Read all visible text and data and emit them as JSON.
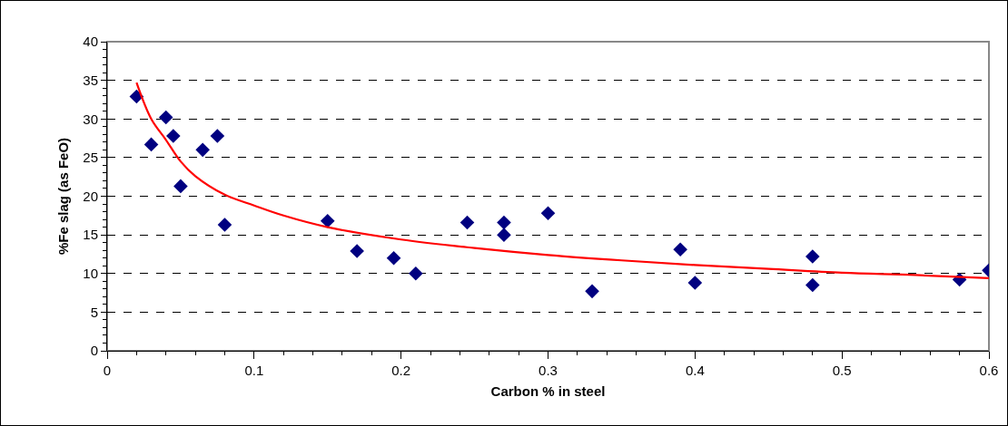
{
  "chart_data": {
    "type": "scatter",
    "xlabel": "Carbon % in steel",
    "ylabel": "%Fe slag (as FeO)",
    "xlim": [
      0,
      0.6
    ],
    "xticks": [
      0,
      0.1,
      0.2,
      0.3,
      0.4,
      0.5,
      0.6
    ],
    "ylim": [
      0,
      40
    ],
    "yticks": [
      0,
      5,
      10,
      15,
      20,
      25,
      30,
      35,
      40
    ],
    "grid": "y",
    "legend": false,
    "series": [
      {
        "marker": "diamond",
        "color": "#000080",
        "x": [
          0.02,
          0.03,
          0.04,
          0.045,
          0.05,
          0.065,
          0.075,
          0.08,
          0.15,
          0.17,
          0.195,
          0.21,
          0.245,
          0.27,
          0.27,
          0.3,
          0.33,
          0.39,
          0.4,
          0.48,
          0.48,
          0.58,
          0.6
        ],
        "values": [
          32.9,
          26.7,
          30.2,
          27.8,
          21.3,
          26,
          27.8,
          16.3,
          16.8,
          12.9,
          12,
          10,
          16.6,
          16.6,
          15,
          17.8,
          7.7,
          13.1,
          8.8,
          12.2,
          8.5,
          9.2,
          10.4
        ]
      },
      {
        "type": "line",
        "color": "#ff0000",
        "x": [
          0.02,
          0.03,
          0.04,
          0.05,
          0.06,
          0.08,
          0.1,
          0.12,
          0.15,
          0.2,
          0.25,
          0.3,
          0.35,
          0.4,
          0.45,
          0.5,
          0.55,
          0.6
        ],
        "values": [
          34.7,
          30,
          27.3,
          24.5,
          22.6,
          20.2,
          18.8,
          17.5,
          16,
          14.4,
          13.3,
          12.4,
          11.7,
          11.1,
          10.6,
          10.1,
          9.8,
          9.4
        ]
      }
    ]
  }
}
